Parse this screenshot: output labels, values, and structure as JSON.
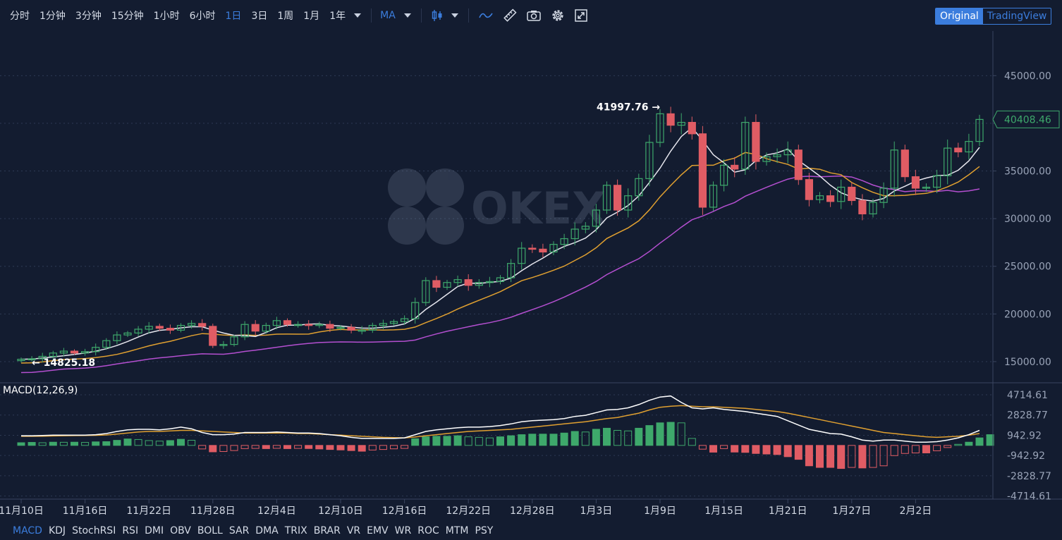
{
  "toolbar": {
    "timeframes": [
      {
        "label": "分时",
        "active": false
      },
      {
        "label": "1分钟",
        "active": false
      },
      {
        "label": "3分钟",
        "active": false
      },
      {
        "label": "15分钟",
        "active": false
      },
      {
        "label": "1小时",
        "active": false
      },
      {
        "label": "6小时",
        "active": false
      },
      {
        "label": "1日",
        "active": true
      },
      {
        "label": "3日",
        "active": false
      },
      {
        "label": "1周",
        "active": false
      },
      {
        "label": "1月",
        "active": false
      },
      {
        "label": "1年",
        "active": false
      }
    ],
    "indicator_label": "MA",
    "icons": [
      "candlestick-icon",
      "line-wave-icon",
      "ruler-icon",
      "camera-icon",
      "gear-icon",
      "expand-icon"
    ]
  },
  "view_switch": {
    "original": "Original",
    "tradingview": "TradingView",
    "active": "Original"
  },
  "watermark": "OKEX",
  "chart_data": [
    {
      "type": "candlestick",
      "price_ylim": [
        13000,
        48500
      ],
      "price_ticks": [
        "45000.00",
        "40000.00",
        "35000.00",
        "30000.00",
        "25000.00",
        "20000.00",
        "15000.00"
      ],
      "current_price": "40408.46",
      "annotations": {
        "max": "41997.76",
        "min": "14825.18"
      },
      "x_labels": [
        "11月10日",
        "11月16日",
        "11月22日",
        "11月28日",
        "12月4日",
        "12月10日",
        "12月16日",
        "12月22日",
        "12月28日",
        "1月3日",
        "1月9日",
        "1月15日",
        "1月21日",
        "1月27日",
        "2月2日"
      ],
      "ma_colors": {
        "ma_short": "#e6e6ee",
        "ma_mid": "#e0a030",
        "ma_long": "#b44fd0"
      },
      "up_color": "#3ea86b",
      "down_color": "#e05c64",
      "closes": [
        15250,
        15300,
        15550,
        15900,
        16100,
        15900,
        16050,
        16500,
        17200,
        17800,
        18000,
        18400,
        18700,
        18500,
        18300,
        18800,
        19000,
        18700,
        16700,
        16800,
        17600,
        18900,
        18200,
        18800,
        19300,
        18900,
        18900,
        18800,
        18900,
        18500,
        18600,
        18300,
        18300,
        18800,
        19000,
        19200,
        19500,
        21200,
        23500,
        22800,
        23300,
        23600,
        23000,
        23300,
        23400,
        23800,
        25300,
        26900,
        26800,
        26500,
        27300,
        27900,
        28900,
        29200,
        30900,
        33500,
        30900,
        32400,
        34200,
        38000,
        41000,
        39800,
        40100,
        38900,
        31200,
        33500,
        35600,
        35200,
        40100,
        36000,
        36500,
        36700,
        37200,
        34100,
        32000,
        32400,
        31800,
        33300,
        31900,
        30500,
        31700,
        33200,
        37200,
        34400,
        33200,
        33300,
        34500,
        37400,
        37000,
        38100,
        40408
      ],
      "macd": {
        "title": "MACD(12,26,9)",
        "ylim": [
          -5000,
          5500
        ],
        "ticks": [
          "4714.61",
          "2828.77",
          "942.92",
          "-942.92",
          "-2828.77",
          "-4714.61"
        ],
        "dif_color": "#ffffff",
        "dea_color": "#e0a030",
        "dif": [
          900,
          900,
          920,
          950,
          950,
          960,
          960,
          1000,
          1100,
          1300,
          1450,
          1500,
          1500,
          1450,
          1550,
          1700,
          1550,
          1200,
          1000,
          1000,
          1050,
          1200,
          1200,
          1200,
          1250,
          1200,
          1150,
          1150,
          1100,
          1000,
          900,
          750,
          650,
          650,
          650,
          650,
          700,
          1000,
          1300,
          1450,
          1550,
          1650,
          1700,
          1700,
          1750,
          1850,
          2000,
          2200,
          2300,
          2350,
          2400,
          2500,
          2700,
          2800,
          3050,
          3300,
          3350,
          3500,
          3800,
          4200,
          4500,
          4600,
          4000,
          3500,
          3400,
          3500,
          3350,
          3250,
          3150,
          3000,
          2850,
          2700,
          2300,
          1900,
          1500,
          1300,
          1100,
          1050,
          800,
          500,
          400,
          500,
          500,
          400,
          300,
          300,
          350,
          500,
          700,
          1000,
          1400
        ],
        "dea": [
          850,
          850,
          860,
          880,
          900,
          910,
          920,
          940,
          970,
          1050,
          1150,
          1250,
          1300,
          1300,
          1350,
          1400,
          1400,
          1350,
          1300,
          1250,
          1200,
          1150,
          1150,
          1150,
          1150,
          1150,
          1100,
          1100,
          1050,
          1000,
          950,
          900,
          850,
          800,
          750,
          720,
          700,
          780,
          900,
          1000,
          1100,
          1200,
          1300,
          1350,
          1400,
          1450,
          1500,
          1600,
          1700,
          1800,
          1900,
          2000,
          2100,
          2200,
          2350,
          2500,
          2600,
          2800,
          3000,
          3300,
          3550,
          3650,
          3700,
          3650,
          3600,
          3600,
          3550,
          3500,
          3450,
          3350,
          3250,
          3150,
          3000,
          2800,
          2600,
          2400,
          2200,
          2000,
          1800,
          1600,
          1400,
          1200,
          1100,
          1000,
          900,
          800,
          750,
          800,
          850,
          950,
          1100
        ],
        "hist": [
          250,
          280,
          250,
          300,
          290,
          300,
          280,
          330,
          350,
          470,
          600,
          550,
          450,
          400,
          450,
          570,
          480,
          -330,
          -600,
          -570,
          -480,
          -300,
          -280,
          -300,
          -270,
          -300,
          -280,
          -290,
          -330,
          -380,
          -420,
          -480,
          -540,
          -430,
          -380,
          -320,
          -280,
          620,
          800,
          850,
          850,
          900,
          800,
          750,
          700,
          800,
          900,
          1000,
          1050,
          1050,
          1050,
          1150,
          1300,
          1250,
          1500,
          1600,
          1400,
          1350,
          1600,
          1850,
          2100,
          2150,
          2100,
          650,
          -350,
          -630,
          -300,
          -620,
          -650,
          -750,
          -800,
          -850,
          -1050,
          -1300,
          -1900,
          -2050,
          -2050,
          -2150,
          -2050,
          -2100,
          -2050,
          -1900,
          -950,
          -750,
          -700,
          -700,
          -500,
          -200,
          100,
          300,
          700,
          1000
        ]
      }
    }
  ],
  "indicators": [
    {
      "label": "MACD",
      "active": true
    },
    {
      "label": "KDJ",
      "active": false
    },
    {
      "label": "StochRSI",
      "active": false
    },
    {
      "label": "RSI",
      "active": false
    },
    {
      "label": "DMI",
      "active": false
    },
    {
      "label": "OBV",
      "active": false
    },
    {
      "label": "BOLL",
      "active": false
    },
    {
      "label": "SAR",
      "active": false
    },
    {
      "label": "DMA",
      "active": false
    },
    {
      "label": "TRIX",
      "active": false
    },
    {
      "label": "BRAR",
      "active": false
    },
    {
      "label": "VR",
      "active": false
    },
    {
      "label": "EMV",
      "active": false
    },
    {
      "label": "WR",
      "active": false
    },
    {
      "label": "ROC",
      "active": false
    },
    {
      "label": "MTM",
      "active": false
    },
    {
      "label": "PSY",
      "active": false
    }
  ]
}
